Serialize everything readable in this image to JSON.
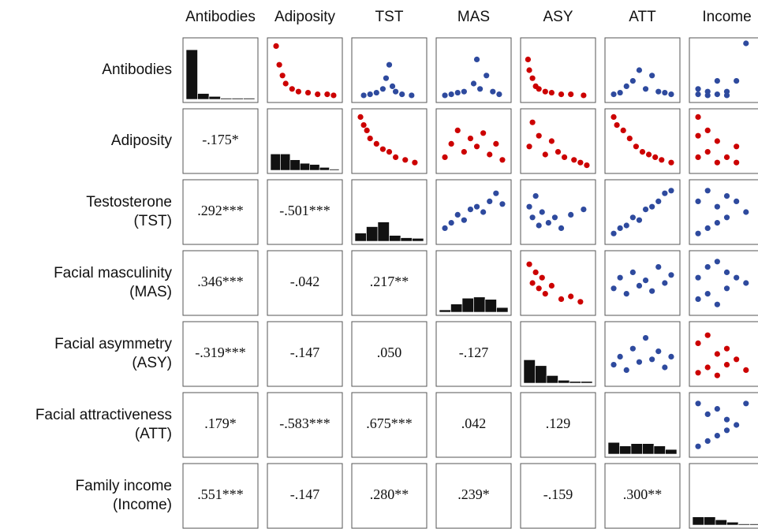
{
  "chart_data": {
    "type": "scatter-matrix",
    "variables": [
      "Antibodies",
      "Adiposity",
      "TST",
      "MAS",
      "ASY",
      "ATT",
      "Income"
    ],
    "row_labels": [
      [
        "Antibodies"
      ],
      [
        "Adiposity"
      ],
      [
        "Testosterone",
        "(TST)"
      ],
      [
        "Facial masculinity",
        "(MAS)"
      ],
      [
        "Facial asymmetry",
        "(ASY)"
      ],
      [
        "Facial attractiveness",
        "(ATT)"
      ],
      [
        "Family income",
        "(Income)"
      ]
    ],
    "correlations": [
      [
        "-.175*"
      ],
      [
        ".292***",
        "-.501***"
      ],
      [
        ".346***",
        "-.042",
        ".217**"
      ],
      [
        "-.319***",
        "-.147",
        ".050",
        "-.127"
      ],
      [
        ".179*",
        "-.583***",
        ".675***",
        ".042",
        ".129"
      ],
      [
        ".551***",
        "-.147",
        ".280**",
        ".239*",
        "-.159",
        ".300**"
      ]
    ],
    "histograms": [
      [
        85,
        10,
        5,
        2,
        2,
        2
      ],
      [
        28,
        28,
        18,
        12,
        10,
        5,
        2
      ],
      [
        14,
        25,
        33,
        10,
        6,
        5
      ],
      [
        4,
        14,
        24,
        26,
        22,
        8
      ],
      [
        40,
        30,
        13,
        5,
        3,
        3
      ],
      [
        20,
        14,
        18,
        18,
        14,
        8
      ],
      [
        14,
        14,
        9,
        5,
        2,
        2
      ]
    ],
    "scatter": [
      [
        {
          "color": "#cc0000",
          "x": [
            5,
            10,
            15,
            20,
            30,
            40,
            55,
            70,
            85,
            95
          ],
          "y": [
            95,
            60,
            40,
            25,
            15,
            10,
            8,
            5,
            5,
            3
          ]
        },
        {
          "color": "#2e4a9e",
          "x": [
            10,
            20,
            30,
            40,
            45,
            50,
            55,
            60,
            70,
            85
          ],
          "y": [
            3,
            5,
            8,
            15,
            35,
            60,
            20,
            10,
            5,
            3
          ]
        },
        {
          "color": "#2e4a9e",
          "x": [
            5,
            15,
            25,
            35,
            50,
            60,
            70,
            80,
            90,
            55
          ],
          "y": [
            3,
            5,
            8,
            10,
            25,
            15,
            40,
            10,
            5,
            70
          ]
        },
        {
          "color": "#cc0000",
          "x": [
            3,
            5,
            10,
            15,
            20,
            30,
            40,
            55,
            70,
            90
          ],
          "y": [
            70,
            50,
            35,
            20,
            15,
            10,
            8,
            5,
            5,
            3
          ]
        },
        {
          "color": "#2e4a9e",
          "x": [
            5,
            15,
            25,
            35,
            45,
            55,
            65,
            75,
            85,
            95
          ],
          "y": [
            5,
            8,
            20,
            30,
            50,
            15,
            40,
            10,
            8,
            5
          ]
        },
        {
          "color": "#2e4a9e",
          "x": [
            5,
            5,
            20,
            20,
            35,
            35,
            50,
            50,
            65,
            80
          ],
          "y": [
            15,
            5,
            10,
            3,
            30,
            5,
            10,
            3,
            30,
            100
          ]
        }
      ],
      [
        {
          "color": "#cc0000",
          "x": [
            5,
            10,
            15,
            20,
            30,
            40,
            50,
            60,
            75,
            90
          ],
          "y": [
            95,
            80,
            70,
            55,
            45,
            35,
            30,
            20,
            15,
            10
          ]
        },
        {
          "color": "#cc0000",
          "x": [
            5,
            15,
            25,
            35,
            45,
            55,
            65,
            75,
            85,
            95
          ],
          "y": [
            20,
            45,
            70,
            30,
            55,
            40,
            65,
            25,
            45,
            15
          ]
        },
        {
          "color": "#cc0000",
          "x": [
            5,
            10,
            20,
            30,
            40,
            50,
            60,
            75,
            85,
            95
          ],
          "y": [
            40,
            85,
            60,
            25,
            50,
            30,
            20,
            15,
            10,
            5
          ]
        },
        {
          "color": "#cc0000",
          "x": [
            5,
            10,
            20,
            30,
            40,
            50,
            60,
            70,
            80,
            95
          ],
          "y": [
            95,
            80,
            70,
            55,
            40,
            30,
            25,
            20,
            15,
            10
          ]
        },
        {
          "color": "#cc0000",
          "x": [
            5,
            5,
            5,
            20,
            20,
            35,
            35,
            50,
            65,
            65
          ],
          "y": [
            95,
            60,
            20,
            70,
            30,
            50,
            10,
            20,
            40,
            10
          ]
        }
      ],
      [
        {
          "color": "#2e4a9e",
          "x": [
            5,
            15,
            25,
            35,
            45,
            55,
            65,
            75,
            85,
            95
          ],
          "y": [
            20,
            30,
            45,
            35,
            55,
            60,
            50,
            70,
            85,
            65
          ]
        },
        {
          "color": "#2e4a9e",
          "x": [
            5,
            10,
            15,
            20,
            25,
            35,
            45,
            55,
            70,
            90
          ],
          "y": [
            60,
            40,
            80,
            25,
            50,
            30,
            40,
            20,
            45,
            55
          ]
        },
        {
          "color": "#2e4a9e",
          "x": [
            5,
            15,
            25,
            35,
            45,
            55,
            65,
            75,
            85,
            95
          ],
          "y": [
            10,
            20,
            25,
            40,
            35,
            55,
            60,
            70,
            85,
            90
          ]
        },
        {
          "color": "#2e4a9e",
          "x": [
            5,
            5,
            20,
            20,
            35,
            35,
            50,
            50,
            65,
            80
          ],
          "y": [
            10,
            70,
            20,
            90,
            30,
            60,
            40,
            80,
            70,
            50
          ]
        }
      ],
      [
        {
          "color": "#cc0000",
          "x": [
            5,
            10,
            15,
            20,
            25,
            30,
            40,
            55,
            70,
            85
          ],
          "y": [
            85,
            50,
            70,
            40,
            60,
            30,
            45,
            20,
            25,
            15
          ]
        },
        {
          "color": "#2e4a9e",
          "x": [
            5,
            15,
            25,
            35,
            45,
            55,
            65,
            75,
            85,
            95
          ],
          "y": [
            40,
            60,
            30,
            70,
            45,
            55,
            35,
            80,
            50,
            65
          ]
        },
        {
          "color": "#2e4a9e",
          "x": [
            5,
            5,
            20,
            20,
            35,
            35,
            50,
            50,
            65,
            80
          ],
          "y": [
            20,
            60,
            30,
            80,
            10,
            90,
            40,
            70,
            60,
            50
          ]
        }
      ],
      [
        {
          "color": "#2e4a9e",
          "x": [
            5,
            15,
            25,
            35,
            45,
            55,
            65,
            75,
            85,
            95
          ],
          "y": [
            30,
            45,
            20,
            60,
            35,
            80,
            40,
            55,
            25,
            45
          ]
        },
        {
          "color": "#cc0000",
          "x": [
            5,
            5,
            20,
            20,
            35,
            35,
            50,
            50,
            65,
            80
          ],
          "y": [
            15,
            70,
            25,
            85,
            10,
            50,
            30,
            60,
            40,
            20
          ]
        }
      ],
      [
        {
          "color": "#2e4a9e",
          "x": [
            5,
            5,
            20,
            20,
            35,
            35,
            50,
            50,
            65,
            80
          ],
          "y": [
            10,
            90,
            20,
            70,
            30,
            80,
            40,
            60,
            50,
            90
          ]
        }
      ]
    ]
  }
}
